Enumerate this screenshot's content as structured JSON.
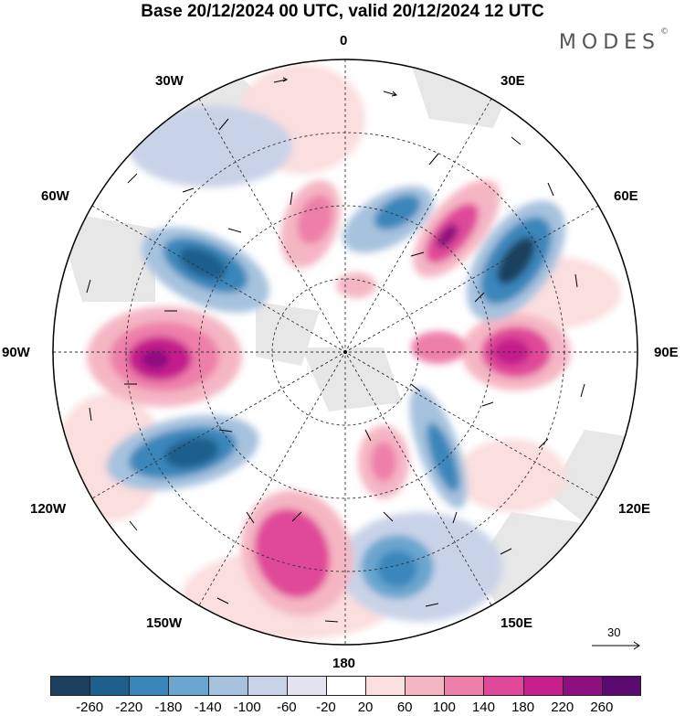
{
  "title": "Base 20/12/2024 00 UTC, valid 20/12/2024 12 UTC",
  "brand": "MODES",
  "brand_mark": "©",
  "longitude_labels": {
    "top": "0",
    "bottom": "180",
    "left": "90W",
    "right": "90E",
    "upper_left_1": "30W",
    "upper_left_2": "60W",
    "upper_right_1": "30E",
    "upper_right_2": "60E",
    "lower_left_1": "120W",
    "lower_left_2": "150W",
    "lower_right_1": "120E",
    "lower_right_2": "150E"
  },
  "reference_vector": {
    "label": "30"
  },
  "colorbar": {
    "ticks": [
      "-260",
      "-220",
      "-180",
      "-140",
      "-100",
      "-60",
      "-20",
      "20",
      "60",
      "100",
      "140",
      "180",
      "220",
      "260"
    ],
    "colors": [
      "#1d3f5e",
      "#1f5f8c",
      "#3a86bb",
      "#6aa6cf",
      "#a6c2de",
      "#c9d3e8",
      "#e4e4f0",
      "#ffffff",
      "#fbdede",
      "#f5b6c4",
      "#ee7fa9",
      "#e04899",
      "#c41f8c",
      "#8e0f7f",
      "#5a0a6e"
    ]
  },
  "map_style": {
    "land": "#e6e6e6",
    "positive_strong": "#d23a96",
    "positive_mid": "#ee7fa9",
    "positive_light": "#fbdede",
    "negative_strong": "#1f5f8c",
    "negative_mid": "#6aa6cf",
    "negative_light": "#c9d3e8"
  }
}
